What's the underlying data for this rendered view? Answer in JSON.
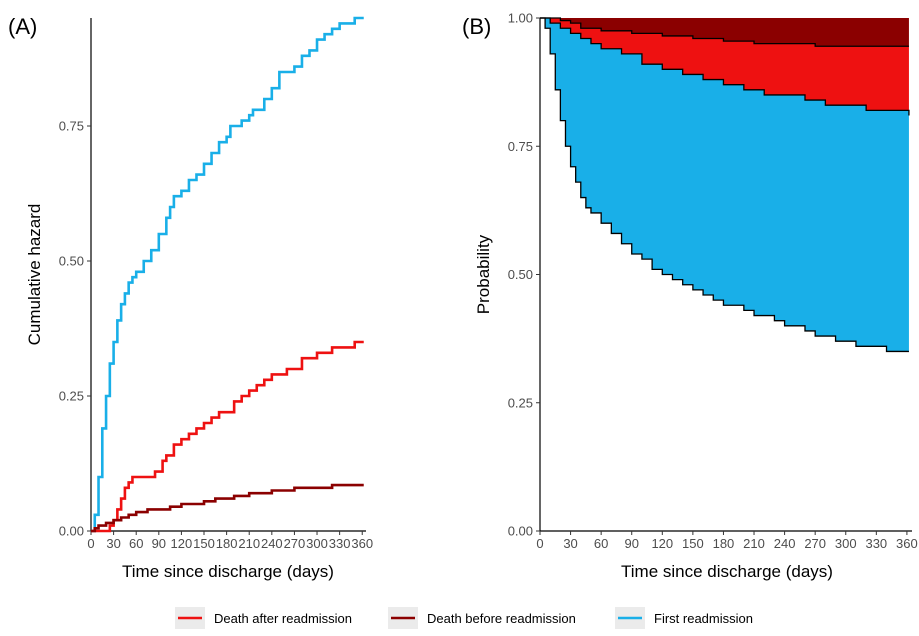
{
  "colors": {
    "first_readmission": "#19AFE8",
    "death_after_readmission": "#EE1111",
    "death_before_readmission": "#8B0000",
    "legend_key_bg": "#EBEBEB"
  },
  "legend": {
    "items": [
      {
        "label": "Death after readmission",
        "color_key": "death_after_readmission"
      },
      {
        "label": "Death before readmission",
        "color_key": "death_before_readmission"
      },
      {
        "label": "First readmission",
        "color_key": "first_readmission"
      }
    ],
    "placement": "bottom"
  },
  "chart_data": [
    {
      "panel_label": "(A)",
      "type": "line",
      "title": "",
      "xlabel": "Time since discharge (days)",
      "ylabel": "Cumulative hazard",
      "xlim": [
        0,
        365
      ],
      "ylim": [
        0,
        0.95
      ],
      "x_ticks": [
        0,
        30,
        60,
        90,
        120,
        150,
        180,
        210,
        240,
        270,
        300,
        330,
        360
      ],
      "y_ticks": [
        0.0,
        0.25,
        0.5,
        0.75
      ],
      "y_tick_labels": [
        "0.00",
        "0.25",
        "0.50",
        "0.75"
      ],
      "grid": false,
      "series": [
        {
          "name": "First readmission",
          "color_key": "first_readmission",
          "points": [
            [
              0,
              0
            ],
            [
              5,
              0.03
            ],
            [
              10,
              0.1
            ],
            [
              15,
              0.19
            ],
            [
              20,
              0.25
            ],
            [
              25,
              0.31
            ],
            [
              30,
              0.35
            ],
            [
              35,
              0.39
            ],
            [
              40,
              0.42
            ],
            [
              45,
              0.44
            ],
            [
              50,
              0.46
            ],
            [
              55,
              0.47
            ],
            [
              60,
              0.48
            ],
            [
              70,
              0.5
            ],
            [
              80,
              0.52
            ],
            [
              90,
              0.55
            ],
            [
              100,
              0.58
            ],
            [
              105,
              0.6
            ],
            [
              110,
              0.62
            ],
            [
              120,
              0.63
            ],
            [
              130,
              0.65
            ],
            [
              140,
              0.66
            ],
            [
              150,
              0.68
            ],
            [
              160,
              0.7
            ],
            [
              170,
              0.72
            ],
            [
              180,
              0.73
            ],
            [
              185,
              0.75
            ],
            [
              190,
              0.75
            ],
            [
              200,
              0.76
            ],
            [
              210,
              0.77
            ],
            [
              215,
              0.78
            ],
            [
              230,
              0.8
            ],
            [
              240,
              0.82
            ],
            [
              250,
              0.85
            ],
            [
              260,
              0.85
            ],
            [
              270,
              0.86
            ],
            [
              280,
              0.88
            ],
            [
              290,
              0.89
            ],
            [
              300,
              0.91
            ],
            [
              310,
              0.92
            ],
            [
              320,
              0.93
            ],
            [
              330,
              0.94
            ],
            [
              340,
              0.94
            ],
            [
              350,
              0.95
            ],
            [
              360,
              0.95
            ],
            [
              362,
              0.95
            ]
          ]
        },
        {
          "name": "Death after readmission",
          "color_key": "death_after_readmission",
          "points": [
            [
              0,
              0
            ],
            [
              20,
              0
            ],
            [
              25,
              0.01
            ],
            [
              30,
              0.02
            ],
            [
              35,
              0.04
            ],
            [
              40,
              0.06
            ],
            [
              45,
              0.08
            ],
            [
              50,
              0.09
            ],
            [
              55,
              0.1
            ],
            [
              60,
              0.1
            ],
            [
              75,
              0.1
            ],
            [
              85,
              0.11
            ],
            [
              90,
              0.11
            ],
            [
              95,
              0.13
            ],
            [
              100,
              0.14
            ],
            [
              110,
              0.16
            ],
            [
              120,
              0.17
            ],
            [
              130,
              0.18
            ],
            [
              140,
              0.19
            ],
            [
              150,
              0.2
            ],
            [
              160,
              0.21
            ],
            [
              170,
              0.22
            ],
            [
              180,
              0.22
            ],
            [
              190,
              0.24
            ],
            [
              200,
              0.25
            ],
            [
              210,
              0.26
            ],
            [
              220,
              0.27
            ],
            [
              230,
              0.28
            ],
            [
              240,
              0.29
            ],
            [
              250,
              0.29
            ],
            [
              260,
              0.3
            ],
            [
              270,
              0.3
            ],
            [
              280,
              0.32
            ],
            [
              290,
              0.32
            ],
            [
              300,
              0.33
            ],
            [
              310,
              0.33
            ],
            [
              320,
              0.34
            ],
            [
              330,
              0.34
            ],
            [
              340,
              0.34
            ],
            [
              350,
              0.35
            ],
            [
              360,
              0.35
            ],
            [
              362,
              0.35
            ]
          ]
        },
        {
          "name": "Death before readmission",
          "color_key": "death_before_readmission",
          "points": [
            [
              0,
              0
            ],
            [
              5,
              0.005
            ],
            [
              10,
              0.01
            ],
            [
              20,
              0.015
            ],
            [
              30,
              0.02
            ],
            [
              40,
              0.025
            ],
            [
              50,
              0.03
            ],
            [
              60,
              0.035
            ],
            [
              75,
              0.04
            ],
            [
              90,
              0.04
            ],
            [
              105,
              0.045
            ],
            [
              120,
              0.05
            ],
            [
              150,
              0.055
            ],
            [
              165,
              0.06
            ],
            [
              180,
              0.06
            ],
            [
              190,
              0.065
            ],
            [
              210,
              0.07
            ],
            [
              240,
              0.075
            ],
            [
              260,
              0.075
            ],
            [
              270,
              0.08
            ],
            [
              300,
              0.08
            ],
            [
              320,
              0.085
            ],
            [
              340,
              0.085
            ],
            [
              362,
              0.085
            ]
          ]
        }
      ]
    },
    {
      "panel_label": "(B)",
      "type": "area",
      "stacked": true,
      "title": "",
      "xlabel": "Time since discharge (days)",
      "ylabel": "Probability",
      "xlim": [
        0,
        365
      ],
      "ylim": [
        0,
        1
      ],
      "x_ticks": [
        0,
        30,
        60,
        90,
        120,
        150,
        180,
        210,
        240,
        270,
        300,
        330,
        360
      ],
      "y_ticks": [
        0.0,
        0.25,
        0.5,
        0.75,
        1.0
      ],
      "y_tick_labels": [
        "0.00",
        "0.25",
        "0.50",
        "0.75",
        "1.00"
      ],
      "grid": false,
      "boundaries": {
        "lower_blue": [
          [
            0,
            1.0
          ],
          [
            5,
            0.98
          ],
          [
            10,
            0.93
          ],
          [
            15,
            0.86
          ],
          [
            20,
            0.8
          ],
          [
            25,
            0.75
          ],
          [
            30,
            0.71
          ],
          [
            35,
            0.68
          ],
          [
            40,
            0.65
          ],
          [
            45,
            0.63
          ],
          [
            50,
            0.62
          ],
          [
            60,
            0.6
          ],
          [
            70,
            0.58
          ],
          [
            80,
            0.56
          ],
          [
            90,
            0.54
          ],
          [
            100,
            0.53
          ],
          [
            110,
            0.51
          ],
          [
            120,
            0.5
          ],
          [
            130,
            0.49
          ],
          [
            140,
            0.48
          ],
          [
            150,
            0.47
          ],
          [
            160,
            0.46
          ],
          [
            170,
            0.45
          ],
          [
            180,
            0.44
          ],
          [
            190,
            0.44
          ],
          [
            200,
            0.43
          ],
          [
            210,
            0.42
          ],
          [
            220,
            0.42
          ],
          [
            230,
            0.41
          ],
          [
            240,
            0.4
          ],
          [
            250,
            0.4
          ],
          [
            260,
            0.39
          ],
          [
            270,
            0.38
          ],
          [
            280,
            0.38
          ],
          [
            290,
            0.37
          ],
          [
            300,
            0.37
          ],
          [
            310,
            0.36
          ],
          [
            320,
            0.36
          ],
          [
            330,
            0.36
          ],
          [
            340,
            0.35
          ],
          [
            350,
            0.35
          ],
          [
            362,
            0.35
          ]
        ],
        "blue_red": [
          [
            0,
            1.0
          ],
          [
            10,
            0.99
          ],
          [
            20,
            0.98
          ],
          [
            30,
            0.97
          ],
          [
            40,
            0.96
          ],
          [
            50,
            0.95
          ],
          [
            60,
            0.94
          ],
          [
            80,
            0.93
          ],
          [
            100,
            0.91
          ],
          [
            120,
            0.9
          ],
          [
            140,
            0.89
          ],
          [
            160,
            0.88
          ],
          [
            180,
            0.87
          ],
          [
            200,
            0.86
          ],
          [
            220,
            0.85
          ],
          [
            240,
            0.85
          ],
          [
            260,
            0.84
          ],
          [
            280,
            0.83
          ],
          [
            300,
            0.83
          ],
          [
            320,
            0.82
          ],
          [
            340,
            0.82
          ],
          [
            362,
            0.81
          ]
        ],
        "red_dark": [
          [
            0,
            1.0
          ],
          [
            20,
            0.995
          ],
          [
            30,
            0.99
          ],
          [
            40,
            0.98
          ],
          [
            60,
            0.975
          ],
          [
            90,
            0.97
          ],
          [
            120,
            0.965
          ],
          [
            150,
            0.96
          ],
          [
            180,
            0.955
          ],
          [
            210,
            0.95
          ],
          [
            240,
            0.95
          ],
          [
            270,
            0.945
          ],
          [
            300,
            0.945
          ],
          [
            330,
            0.945
          ],
          [
            362,
            0.945
          ]
        ],
        "top": [
          [
            0,
            1.0
          ],
          [
            362,
            1.0
          ]
        ]
      },
      "series": [
        {
          "name": "First readmission",
          "color_key": "first_readmission",
          "from": "lower_blue",
          "to": "blue_red"
        },
        {
          "name": "Death after readmission",
          "color_key": "death_after_readmission",
          "from": "blue_red",
          "to": "red_dark"
        },
        {
          "name": "Death before readmission",
          "color_key": "death_before_readmission",
          "from": "red_dark",
          "to": "top"
        }
      ]
    }
  ]
}
